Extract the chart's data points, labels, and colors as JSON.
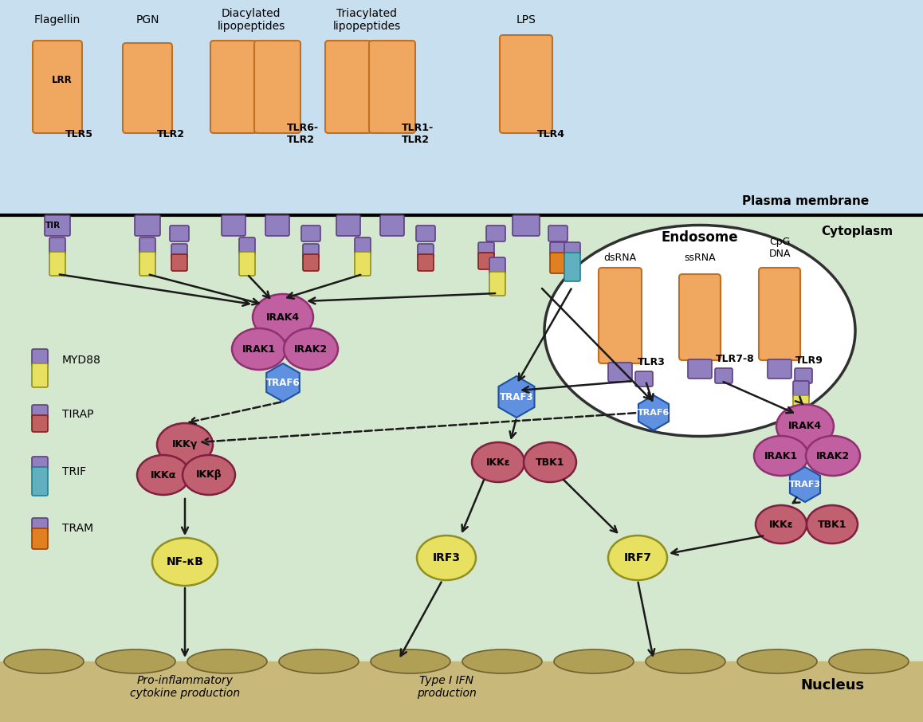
{
  "bg_sky": "#c8dff0",
  "bg_cyt": "#d4e8d0",
  "bg_nuc": "#c8b87a",
  "plasma_membrane_label": "Plasma membrane",
  "cytoplasm_label": "Cytoplasm",
  "endosome_label": "Endosome",
  "nucleus_label": "Nucleus",
  "tlr_color": "#f0a860",
  "tlr_edge": "#c07020",
  "tir_color": "#9080c0",
  "tir_edge": "#604080",
  "myd88_top": "#9080c0",
  "myd88_bot": "#e8e060",
  "tirap_top": "#9080c0",
  "tirap_bot": "#c06060",
  "trif_top": "#9080c0",
  "trif_bot": "#60b0c0",
  "tram_top": "#9080c0",
  "tram_bot": "#e08020",
  "irak_color": "#c060a0",
  "traf6_color": "#6090e0",
  "traf3_color": "#6090e0",
  "ikk_color": "#c06070",
  "nfkb_color": "#e8e060",
  "irf_color": "#e8e060",
  "arrow_color": "#1a1a1a"
}
